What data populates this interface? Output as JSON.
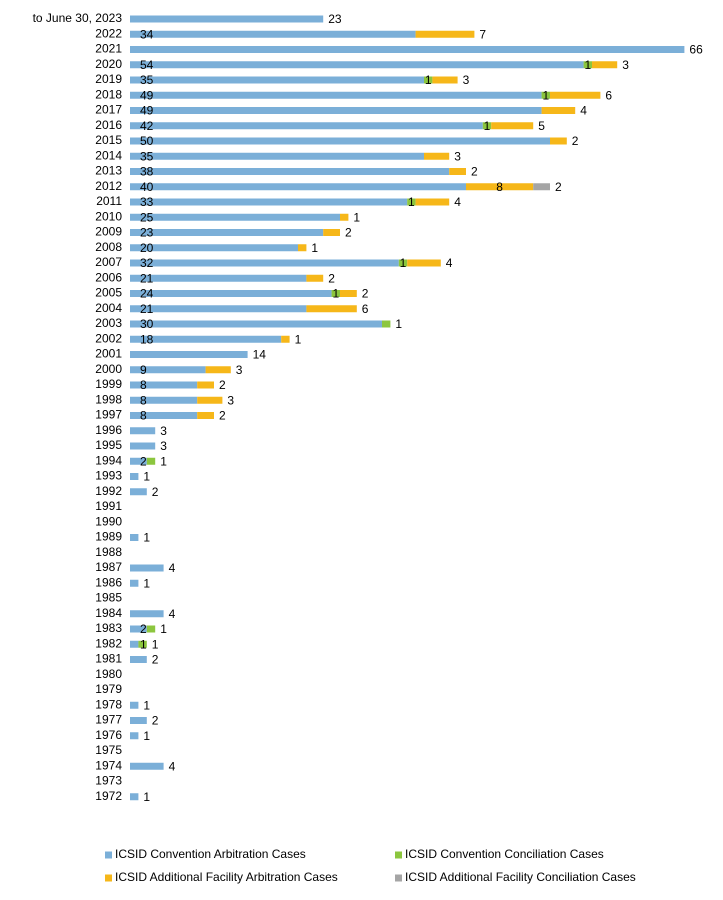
{
  "chart_data": {
    "type": "stacked-bar-horizontal",
    "categories": [
      "to June 30, 2023",
      "2022",
      "2021",
      "2020",
      "2019",
      "2018",
      "2017",
      "2016",
      "2015",
      "2014",
      "2013",
      "2012",
      "2011",
      "2010",
      "2009",
      "2008",
      "2007",
      "2006",
      "2005",
      "2004",
      "2003",
      "2002",
      "2001",
      "2000",
      "1999",
      "1998",
      "1997",
      "1996",
      "1995",
      "1994",
      "1993",
      "1992",
      "1991",
      "1990",
      "1989",
      "1988",
      "1987",
      "1986",
      "1985",
      "1984",
      "1983",
      "1982",
      "1981",
      "1980",
      "1979",
      "1978",
      "1977",
      "1976",
      "1975",
      "1974",
      "1973",
      "1972"
    ],
    "series": [
      {
        "name": "ICSID Convention Arbitration Cases",
        "color": "#7bafd8",
        "values": [
          23,
          34,
          66,
          54,
          35,
          49,
          49,
          42,
          50,
          35,
          38,
          40,
          33,
          25,
          23,
          20,
          32,
          21,
          24,
          21,
          30,
          18,
          14,
          9,
          8,
          8,
          8,
          3,
          3,
          2,
          1,
          2,
          null,
          null,
          1,
          null,
          4,
          1,
          null,
          4,
          2,
          1,
          2,
          null,
          null,
          1,
          2,
          1,
          null,
          4,
          null,
          1
        ]
      },
      {
        "name": "ICSID Convention Conciliation Cases",
        "color": "#8cc63e",
        "values": [
          null,
          null,
          null,
          1,
          1,
          1,
          null,
          1,
          null,
          null,
          null,
          null,
          1,
          null,
          null,
          null,
          1,
          null,
          1,
          null,
          1,
          null,
          null,
          null,
          null,
          null,
          null,
          null,
          null,
          1,
          null,
          null,
          null,
          null,
          null,
          null,
          null,
          null,
          null,
          null,
          1,
          1,
          null,
          null,
          null,
          null,
          null,
          null,
          null,
          null,
          null,
          null
        ]
      },
      {
        "name": "ICSID Additional Facility Arbitration Cases",
        "color": "#f6b719",
        "values": [
          null,
          7,
          null,
          3,
          3,
          6,
          4,
          5,
          2,
          3,
          2,
          8,
          4,
          1,
          2,
          1,
          4,
          2,
          2,
          6,
          null,
          1,
          null,
          3,
          2,
          3,
          2,
          null,
          null,
          null,
          null,
          null,
          null,
          null,
          null,
          null,
          null,
          null,
          null,
          null,
          null,
          null,
          null,
          null,
          null,
          null,
          null,
          null,
          null,
          null,
          null,
          null
        ]
      },
      {
        "name": "ICSID Additional Facility Conciliation Cases",
        "color": "#a5a5a5",
        "values": [
          null,
          null,
          null,
          null,
          null,
          null,
          null,
          null,
          null,
          null,
          null,
          2,
          null,
          null,
          null,
          null,
          null,
          null,
          null,
          null,
          null,
          null,
          null,
          null,
          null,
          null,
          null,
          null,
          null,
          null,
          null,
          null,
          null,
          null,
          null,
          null,
          null,
          null,
          null,
          null,
          null,
          null,
          null,
          null,
          null,
          null,
          null,
          null,
          null,
          null,
          null,
          null
        ]
      }
    ]
  }
}
